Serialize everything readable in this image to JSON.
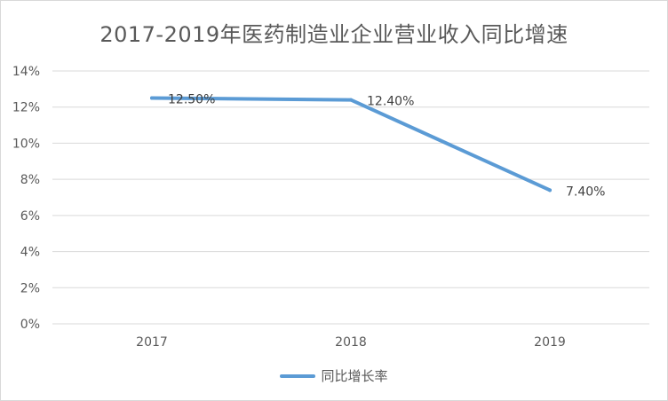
{
  "chart_data": {
    "type": "line",
    "title": "2017-2019年医药制造业企业营业收入同比增速",
    "categories": [
      "2017",
      "2018",
      "2019"
    ],
    "series": [
      {
        "name": "同比增长率",
        "values": [
          12.5,
          12.4,
          7.4
        ],
        "labels": [
          "12.50%",
          "12.40%",
          "7.40%"
        ],
        "color": "#5b9bd5"
      }
    ],
    "y_ticks": [
      "0%",
      "2%",
      "4%",
      "6%",
      "8%",
      "10%",
      "12%",
      "14%"
    ],
    "ylim": [
      0,
      14
    ],
    "grid": true,
    "legend_position": "bottom"
  }
}
